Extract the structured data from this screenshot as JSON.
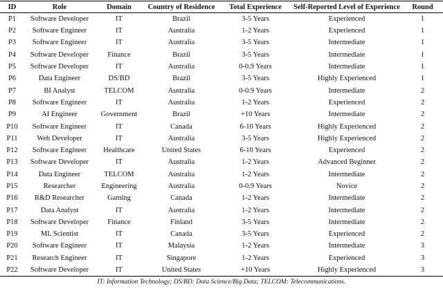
{
  "table": {
    "header": [
      "ID",
      "Role",
      "Domain",
      "Country of Residence",
      "Total Experience",
      "Self-Reported Level of Experience",
      "Round"
    ],
    "rows": [
      [
        "P1",
        "Software Developer",
        "IT",
        "Brazil",
        "3-5 Years",
        "Experienced",
        "1"
      ],
      [
        "P2",
        "Software Engineer",
        "IT",
        "Australia",
        "1-2 Years",
        "Experienced",
        "1"
      ],
      [
        "P3",
        "Software Engineer",
        "IT",
        "Australia",
        "3-5 Years",
        "Intermediate",
        "1"
      ],
      [
        "P4",
        "Software Developer",
        "Finance",
        "Brazil",
        "3-5 Years",
        "Intermediate",
        "1"
      ],
      [
        "P5",
        "Software Developer",
        "IT",
        "Australia",
        "0-0.9 Years",
        "Intermediate",
        "1"
      ],
      [
        "P6",
        "Data Engineer",
        "DS/BD",
        "Brazil",
        "3-5 Years",
        "Highly Experienced",
        "1"
      ],
      [
        "P7",
        "BI Analyst",
        "TELCOM",
        "Australia",
        "0-0.9 Years",
        "Intermediate",
        "2"
      ],
      [
        "P8",
        "Software Engineer",
        "IT",
        "Australia",
        "1-2 Years",
        "Experienced",
        "2"
      ],
      [
        "P9",
        "AI Engineer",
        "Government",
        "Brazil",
        "+10 Years",
        "Intermediate",
        "2"
      ],
      [
        "P10",
        "Software Engineer",
        "IT",
        "Canada",
        "6-10 Years",
        "Highly Experienced",
        "2"
      ],
      [
        "P11",
        "Web Developer",
        "IT",
        "Australia",
        "3-5 Years",
        "Highly Experienced",
        "2"
      ],
      [
        "P12",
        "Software Engineer",
        "Healthcare",
        "United States",
        "6-10 Years",
        "Experienced",
        "2"
      ],
      [
        "P13",
        "Software Developer",
        "IT",
        "Australia",
        "1-2 Years",
        "Advanced Beginner",
        "2"
      ],
      [
        "P14",
        "Data Engineer",
        "TELCOM",
        "Australia",
        "1-2 Years",
        "Intermediate",
        "2"
      ],
      [
        "P15",
        "Researcher",
        "Engineering",
        "Australia",
        "0-0.9 Years",
        "Novice",
        "2"
      ],
      [
        "P16",
        "R&D Researcher",
        "Gaming",
        "Canada",
        "1-2 Years",
        "Intermediate",
        "2"
      ],
      [
        "P17",
        "Data Analyst",
        "IT",
        "Australia",
        "1-2 Years",
        "Intermediate",
        "2"
      ],
      [
        "P18",
        "Software Developer",
        "Finance",
        "Finland",
        "3-5 Years",
        "Intermediate",
        "2"
      ],
      [
        "P19",
        "ML Scientist",
        "IT",
        "Canada",
        "3-5 Years",
        "Experienced",
        "2"
      ],
      [
        "P20",
        "Software Engineer",
        "IT",
        "Malaysia",
        "1-2 Years",
        "Intermediate",
        "3"
      ],
      [
        "P21",
        "Research Engineer",
        "IT",
        "Singapore",
        "1-2 Years",
        "Experienced",
        "3"
      ],
      [
        "P22",
        "Software Developer",
        "IT",
        "United States",
        "+10 Years",
        "Highly Experienced",
        "3"
      ]
    ],
    "caption": "IT: Information Technology; DS/BD: Data Science/Big Data; TELCOM: Telecommunications."
  }
}
